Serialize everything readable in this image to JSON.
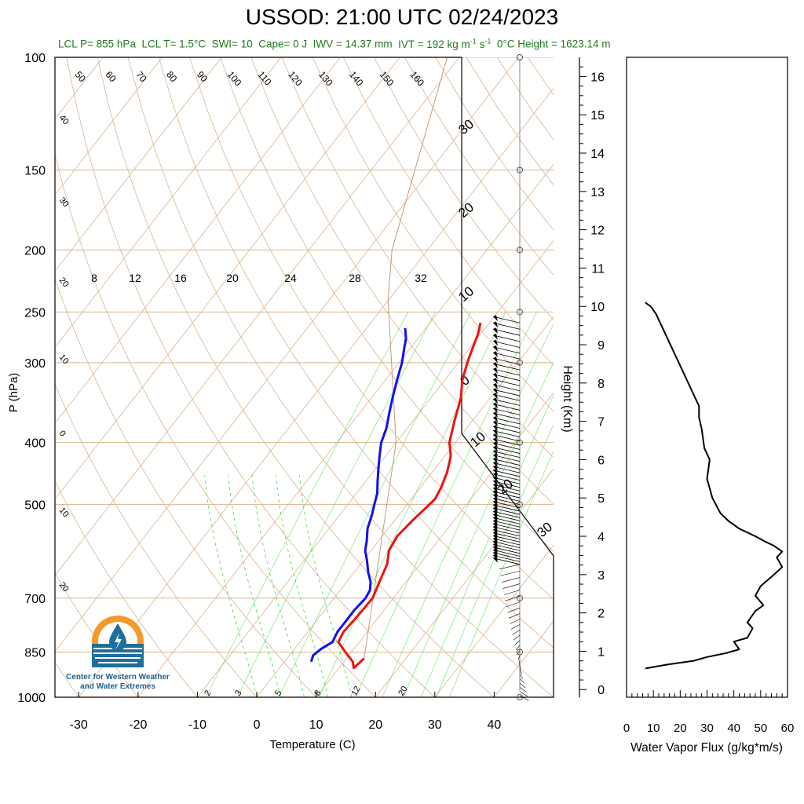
{
  "title": "USSOD: 21:00 UTC 02/24/2023",
  "subtitle": {
    "lcl_p": "LCL P= 855 hPa",
    "lcl_t": "LCL T= 1.5°C",
    "swi": "SWI= 10",
    "cape": "Cape= 0 J",
    "iwv": "IWV = 14.37 mm",
    "ivt_prefix": "IVT = 192 kg m",
    "ivt_exp1": "-1",
    "ivt_mid": " s",
    "ivt_exp2": "-1",
    "freezing": "0°C Height = 1623.14 m"
  },
  "logo": {
    "line1": "Center for Western Weather",
    "line2": "and Water Extremes"
  },
  "colors": {
    "temperature": "#ee1111",
    "dewpoint": "#1111ee",
    "isotherm": "#d9b48f",
    "mixing_ratio": "#44dd44",
    "subtitle": "#1e7a1e",
    "flux": "#000000"
  },
  "chart_data": [
    {
      "type": "skew-t",
      "xlabel": "Temperature (C)",
      "ylabel": "P (hPa)",
      "xlim": [
        -34,
        50
      ],
      "ylim": [
        1000,
        100
      ],
      "y_scale": "log",
      "x_ticks": [
        "-30",
        "-20",
        "-10",
        "0",
        "10",
        "20",
        "30",
        "40"
      ],
      "x_tick_values": [
        -30,
        -20,
        -10,
        0,
        10,
        20,
        30,
        40
      ],
      "y_ticks": [
        "100",
        "150",
        "200",
        "250",
        "300",
        "400",
        "500",
        "700",
        "850",
        "1000"
      ],
      "y_tick_values": [
        100,
        150,
        200,
        250,
        300,
        400,
        500,
        700,
        850,
        1000
      ],
      "mixing_ratio_labels": [
        "8",
        "12",
        "16",
        "20",
        "24",
        "28",
        "32"
      ],
      "mixing_ratio_bottom_labels": [
        "2",
        "3",
        "5",
        "8",
        "12",
        "20"
      ],
      "isotherm_labels": [
        "50",
        "60",
        "70",
        "80",
        "90",
        "100",
        "110",
        "120",
        "130",
        "140",
        "150",
        "160"
      ],
      "side_labels": [
        "40",
        "30",
        "20",
        "10",
        "0",
        "10",
        "20"
      ],
      "right_labels": [
        "30",
        "20",
        "10",
        "0",
        "10",
        "20",
        "30"
      ],
      "series": [
        {
          "name": "Temperature",
          "points": [
            [
              870,
              13
            ],
            [
              900,
              12.5
            ],
            [
              880,
              11.5
            ],
            [
              850,
              9
            ],
            [
              820,
              6.5
            ],
            [
              790,
              6
            ],
            [
              750,
              6.3
            ],
            [
              700,
              6.5
            ],
            [
              660,
              5.5
            ],
            [
              620,
              4.5
            ],
            [
              590,
              3
            ],
            [
              560,
              2.5
            ],
            [
              530,
              3
            ],
            [
              510,
              3.5
            ],
            [
              490,
              4
            ],
            [
              470,
              3.5
            ],
            [
              445,
              2.5
            ],
            [
              420,
              1
            ],
            [
              400,
              -1
            ],
            [
              370,
              -3
            ],
            [
              340,
              -5
            ],
            [
              320,
              -7
            ],
            [
              300,
              -8.5
            ],
            [
              285,
              -9.5
            ],
            [
              270,
              -10.5
            ],
            [
              260,
              -11.5
            ]
          ]
        },
        {
          "name": "Dewpoint",
          "points": [
            [
              880,
              4.5
            ],
            [
              860,
              4
            ],
            [
              840,
              4.5
            ],
            [
              820,
              5.5
            ],
            [
              790,
              5
            ],
            [
              760,
              5
            ],
            [
              730,
              5
            ],
            [
              700,
              5.3
            ],
            [
              680,
              5
            ],
            [
              660,
              4
            ],
            [
              640,
              2.5
            ],
            [
              610,
              0.5
            ],
            [
              590,
              -1
            ],
            [
              570,
              -2
            ],
            [
              545,
              -3.5
            ],
            [
              520,
              -4.5
            ],
            [
              500,
              -5.5
            ],
            [
              480,
              -6.5
            ],
            [
              460,
              -8
            ],
            [
              440,
              -9.5
            ],
            [
              420,
              -11
            ],
            [
              400,
              -12.5
            ],
            [
              380,
              -13.5
            ],
            [
              360,
              -15
            ],
            [
              340,
              -16.5
            ],
            [
              320,
              -18
            ],
            [
              300,
              -19.5
            ],
            [
              285,
              -21
            ],
            [
              275,
              -22
            ],
            [
              265,
              -23.5
            ]
          ]
        }
      ]
    },
    {
      "type": "line",
      "xlabel": "Water Vapor Flux (g/kg*m/s)",
      "ylabel": "Height (Km)",
      "xlim": [
        0,
        60
      ],
      "ylim": [
        -0.2,
        16.5
      ],
      "x_ticks": [
        "0",
        "10",
        "20",
        "30",
        "40",
        "50",
        "60"
      ],
      "x_tick_values": [
        0,
        10,
        20,
        30,
        40,
        50,
        60
      ],
      "y_ticks": [
        "0",
        "1",
        "2",
        "3",
        "4",
        "5",
        "6",
        "7",
        "8",
        "9",
        "10",
        "11",
        "12",
        "13",
        "14",
        "15",
        "16"
      ],
      "y_tick_values": [
        0,
        1,
        2,
        3,
        4,
        5,
        6,
        7,
        8,
        9,
        10,
        11,
        12,
        13,
        14,
        15,
        16
      ],
      "series": [
        {
          "name": "Water Vapor Flux",
          "x": [
            7,
            15,
            25,
            30,
            37,
            42,
            40,
            45,
            47,
            45,
            48,
            51,
            48,
            50,
            55,
            58,
            56,
            58,
            55,
            52,
            48,
            42,
            38,
            35,
            32,
            30,
            31,
            29,
            28,
            27,
            27,
            25,
            23,
            21,
            19,
            17,
            15,
            13,
            12,
            11,
            10,
            9,
            8,
            7
          ],
          "y": [
            0.55,
            0.65,
            0.75,
            0.85,
            0.95,
            1.05,
            1.25,
            1.35,
            1.6,
            1.75,
            2.05,
            2.2,
            2.45,
            2.7,
            3.0,
            3.2,
            3.45,
            3.6,
            3.75,
            3.85,
            4.0,
            4.2,
            4.4,
            4.6,
            5.0,
            5.5,
            6.0,
            6.3,
            6.8,
            7.1,
            7.4,
            7.7,
            8.0,
            8.3,
            8.6,
            8.9,
            9.2,
            9.5,
            9.65,
            9.8,
            9.9,
            10.0,
            10.05,
            10.1
          ]
        }
      ]
    }
  ]
}
